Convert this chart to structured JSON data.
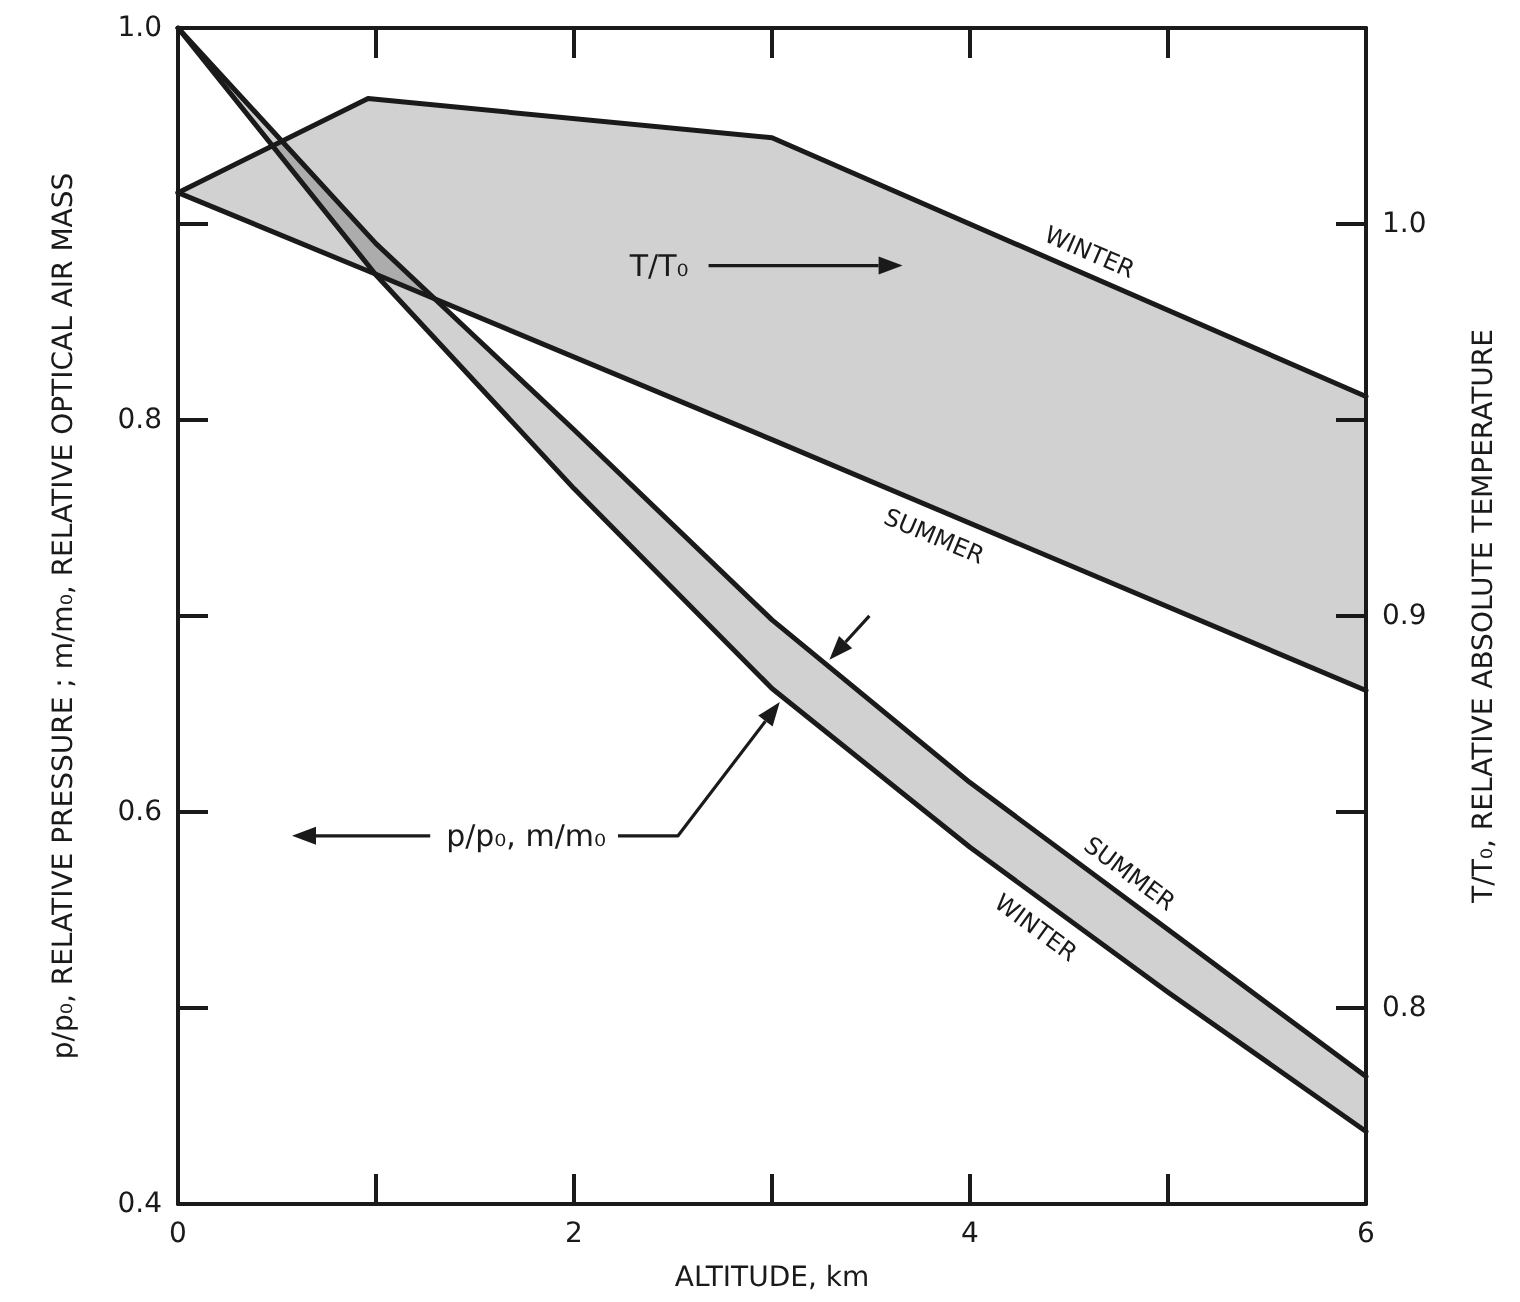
{
  "chart_data": {
    "type": "line",
    "xlabel": "ALTITUDE, km",
    "ylabel": "p/p₀, RELATIVE PRESSURE ; m/m₀, RELATIVE OPTICAL AIR MASS",
    "y2label": "T/T₀, RELATIVE ABSOLUTE TEMPERATURE",
    "annotations": [
      "T/T₀",
      "p/p₀, m/m₀"
    ],
    "xlim": [
      0,
      6
    ],
    "xticks": [
      0,
      {
        "value": 1,
        "label": null
      },
      2,
      {
        "value": 3,
        "label": null
      },
      4,
      {
        "value": 5,
        "label": null
      },
      6
    ],
    "ylim": [
      0.4,
      1.0
    ],
    "yticks": [
      0.4,
      {
        "value": 0.5,
        "label": null
      },
      0.6,
      {
        "value": 0.7,
        "label": null
      },
      0.8,
      {
        "value": 0.9,
        "label": null
      },
      {
        "value": 1.0,
        "label": "1.0"
      }
    ],
    "y2lim": [
      0.75,
      1.05
    ],
    "y2ticks": [
      0.8,
      {
        "value": 0.85,
        "label": null
      },
      0.9,
      {
        "value": 0.95,
        "label": null
      },
      {
        "value": 1.0,
        "label": "1.0"
      }
    ],
    "marker": "none",
    "series": [
      {
        "name": "WINTER",
        "axis": "y2",
        "color": "#1a1a1a",
        "x": [
          0,
          0.96,
          3,
          6
        ],
        "values": [
          1.008,
          1.032,
          1.022,
          0.956
        ]
      },
      {
        "name": "SUMMER",
        "axis": "y2",
        "color": "#1a1a1a",
        "x": [
          0,
          0.96,
          3,
          6
        ],
        "values": [
          1.008,
          0.988,
          0.945,
          0.881
        ],
        "lower": [
          1.008,
          0.988,
          0.945,
          0.881
        ],
        "upper": [
          1.008,
          1.032,
          1.022,
          0.956
        ]
      },
      {
        "name": "SUMMER",
        "color": "#1a1a1a",
        "x": [
          0,
          1,
          2,
          3,
          4,
          5,
          6
        ],
        "values": [
          1.0,
          0.89,
          0.795,
          0.698,
          0.615,
          0.54,
          0.465
        ]
      },
      {
        "name": "WINTER",
        "color": "#1a1a1a",
        "x": [
          0,
          1,
          2,
          3,
          4,
          5,
          6
        ],
        "values": [
          1.0,
          0.874,
          0.765,
          0.663,
          0.582,
          0.508,
          0.437
        ],
        "lower": [
          1.0,
          0.874,
          0.765,
          0.663,
          0.582,
          0.508,
          0.437
        ],
        "upper": [
          1.0,
          0.89,
          0.795,
          0.698,
          0.615,
          0.54,
          0.465
        ]
      }
    ]
  }
}
